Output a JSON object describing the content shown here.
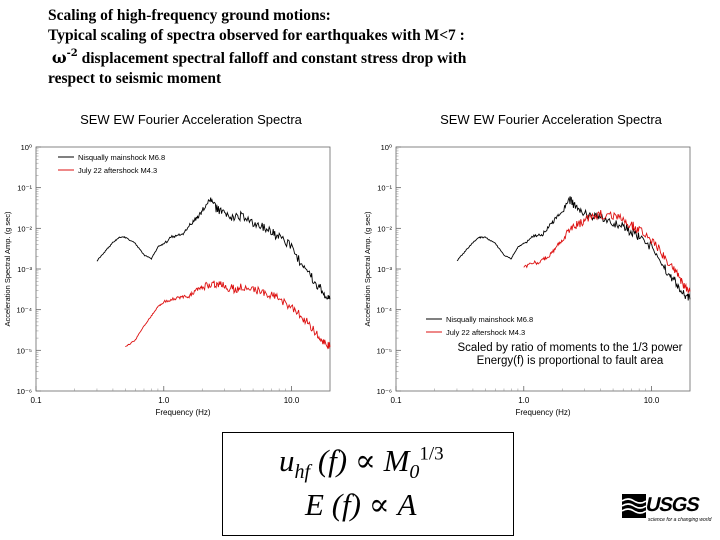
{
  "heading": {
    "line1": "Scaling of high-frequency ground motions:",
    "line2": "Typical scaling of spectra observed for earthquakes with M<7 :",
    "line3_symbol": "ω",
    "line3_exp": "-2",
    "line3_text": " displacement spectral falloff and constant stress drop with",
    "line4": "respect to seismic moment"
  },
  "chart_data": [
    {
      "type": "line",
      "title": "SEW EW Fourier Acceleration Spectra",
      "xlabel": "Frequency (Hz)",
      "ylabel": "Acceleration Spectral Amp. (g sec)",
      "xscale": "log",
      "yscale": "log",
      "xlim": [
        0.1,
        20
      ],
      "ylim": [
        1e-06,
        1
      ],
      "xticks": [
        "0.1",
        "1.0",
        "10.0"
      ],
      "yticks": [
        "10⁰",
        "10⁻¹",
        "10⁻²",
        "10⁻³",
        "10⁻⁴",
        "10⁻⁵",
        "10⁻⁶"
      ],
      "legend_position": "top-left",
      "series": [
        {
          "name": "Nisqually mainshock M6.8",
          "color": "#000000",
          "x": [
            0.3,
            0.35,
            0.4,
            0.45,
            0.5,
            0.6,
            0.7,
            0.8,
            0.9,
            1.0,
            1.2,
            1.4,
            1.6,
            1.8,
            2.0,
            2.3,
            2.6,
            3.0,
            3.5,
            4.0,
            5.0,
            6.0,
            7.0,
            8.0,
            10.0,
            12.0,
            14.0,
            16.0,
            18.0,
            20.0
          ],
          "y": [
            0.0016,
            0.0028,
            0.0045,
            0.006,
            0.006,
            0.0042,
            0.0022,
            0.0018,
            0.0035,
            0.0042,
            0.0065,
            0.007,
            0.012,
            0.018,
            0.025,
            0.05,
            0.03,
            0.022,
            0.018,
            0.02,
            0.014,
            0.011,
            0.008,
            0.006,
            0.0035,
            0.0013,
            0.0007,
            0.0004,
            0.00025,
            0.00018
          ]
        },
        {
          "name": "July 22 aftershock M4.3",
          "color": "#dd1111",
          "x": [
            0.5,
            0.6,
            0.7,
            0.8,
            0.9,
            1.0,
            1.2,
            1.4,
            1.6,
            1.8,
            2.0,
            2.3,
            2.6,
            3.0,
            3.5,
            4.0,
            5.0,
            6.0,
            7.0,
            8.0,
            10.0,
            12.0,
            14.0,
            16.0,
            18.0,
            20.0
          ],
          "y": [
            1.2e-05,
            1.8e-05,
            4e-05,
            7e-05,
            0.00012,
            0.00015,
            0.00018,
            0.0002,
            0.00022,
            0.0003,
            0.00035,
            0.00045,
            0.0004,
            0.00038,
            0.00032,
            0.00034,
            0.0003,
            0.00026,
            0.00022,
            0.00018,
            0.00012,
            7e-05,
            4e-05,
            2.5e-05,
            1.6e-05,
            1.2e-05
          ]
        }
      ]
    },
    {
      "type": "line",
      "title": "SEW EW Fourier Acceleration Spectra",
      "xlabel": "Frequency (Hz)",
      "ylabel": "Acceleration Spectral Amp. (g sec)",
      "xscale": "log",
      "yscale": "log",
      "xlim": [
        0.1,
        20
      ],
      "ylim": [
        1e-06,
        1
      ],
      "xticks": [
        "0.1",
        "1.0",
        "10.0"
      ],
      "yticks": [
        "10⁰",
        "10⁻¹",
        "10⁻²",
        "10⁻³",
        "10⁻⁴",
        "10⁻⁵",
        "10⁻⁶"
      ],
      "legend_position": "bottom-left",
      "annotation": [
        "Scaled by ratio of moments to the 1/3 power",
        "Energy(f) is proportional to fault area"
      ],
      "series": [
        {
          "name": "Nisqually mainshock M6.8",
          "color": "#000000",
          "x": [
            0.3,
            0.35,
            0.4,
            0.45,
            0.5,
            0.6,
            0.7,
            0.8,
            0.9,
            1.0,
            1.2,
            1.4,
            1.6,
            1.8,
            2.0,
            2.3,
            2.6,
            3.0,
            3.5,
            4.0,
            5.0,
            6.0,
            7.0,
            8.0,
            10.0,
            12.0,
            14.0,
            16.0,
            18.0,
            20.0
          ],
          "y": [
            0.0016,
            0.0028,
            0.0045,
            0.006,
            0.006,
            0.0042,
            0.0022,
            0.0018,
            0.0035,
            0.0042,
            0.0065,
            0.007,
            0.012,
            0.018,
            0.025,
            0.05,
            0.03,
            0.022,
            0.018,
            0.02,
            0.014,
            0.011,
            0.008,
            0.006,
            0.0035,
            0.0013,
            0.0007,
            0.0004,
            0.00025,
            0.00018
          ]
        },
        {
          "name": "July 22 aftershock M4.3",
          "color": "#dd1111",
          "x": [
            1.0,
            1.2,
            1.4,
            1.6,
            1.8,
            2.0,
            2.3,
            2.6,
            3.0,
            3.5,
            4.0,
            5.0,
            6.0,
            7.0,
            8.0,
            10.0,
            12.0,
            14.0,
            16.0,
            18.0,
            20.0
          ],
          "y": [
            0.0011,
            0.0014,
            0.0016,
            0.0022,
            0.0035,
            0.005,
            0.009,
            0.012,
            0.015,
            0.02,
            0.022,
            0.02,
            0.016,
            0.012,
            0.009,
            0.005,
            0.0025,
            0.0012,
            0.0007,
            0.0004,
            0.00028
          ]
        }
      ]
    }
  ],
  "formula": {
    "line1_lhs": "u",
    "line1_sub": "hf",
    "line1_arg": "(f)",
    "line1_prop": "∝",
    "line1_rhs": "M",
    "line1_rhs_sub": "0",
    "line1_exp": "1/3",
    "line2_lhs": "E",
    "line2_arg": "(f)",
    "line2_prop": "∝",
    "line2_rhs": "A"
  },
  "logo": {
    "wordmark": "USGS",
    "tagline": "science for a changing world"
  }
}
